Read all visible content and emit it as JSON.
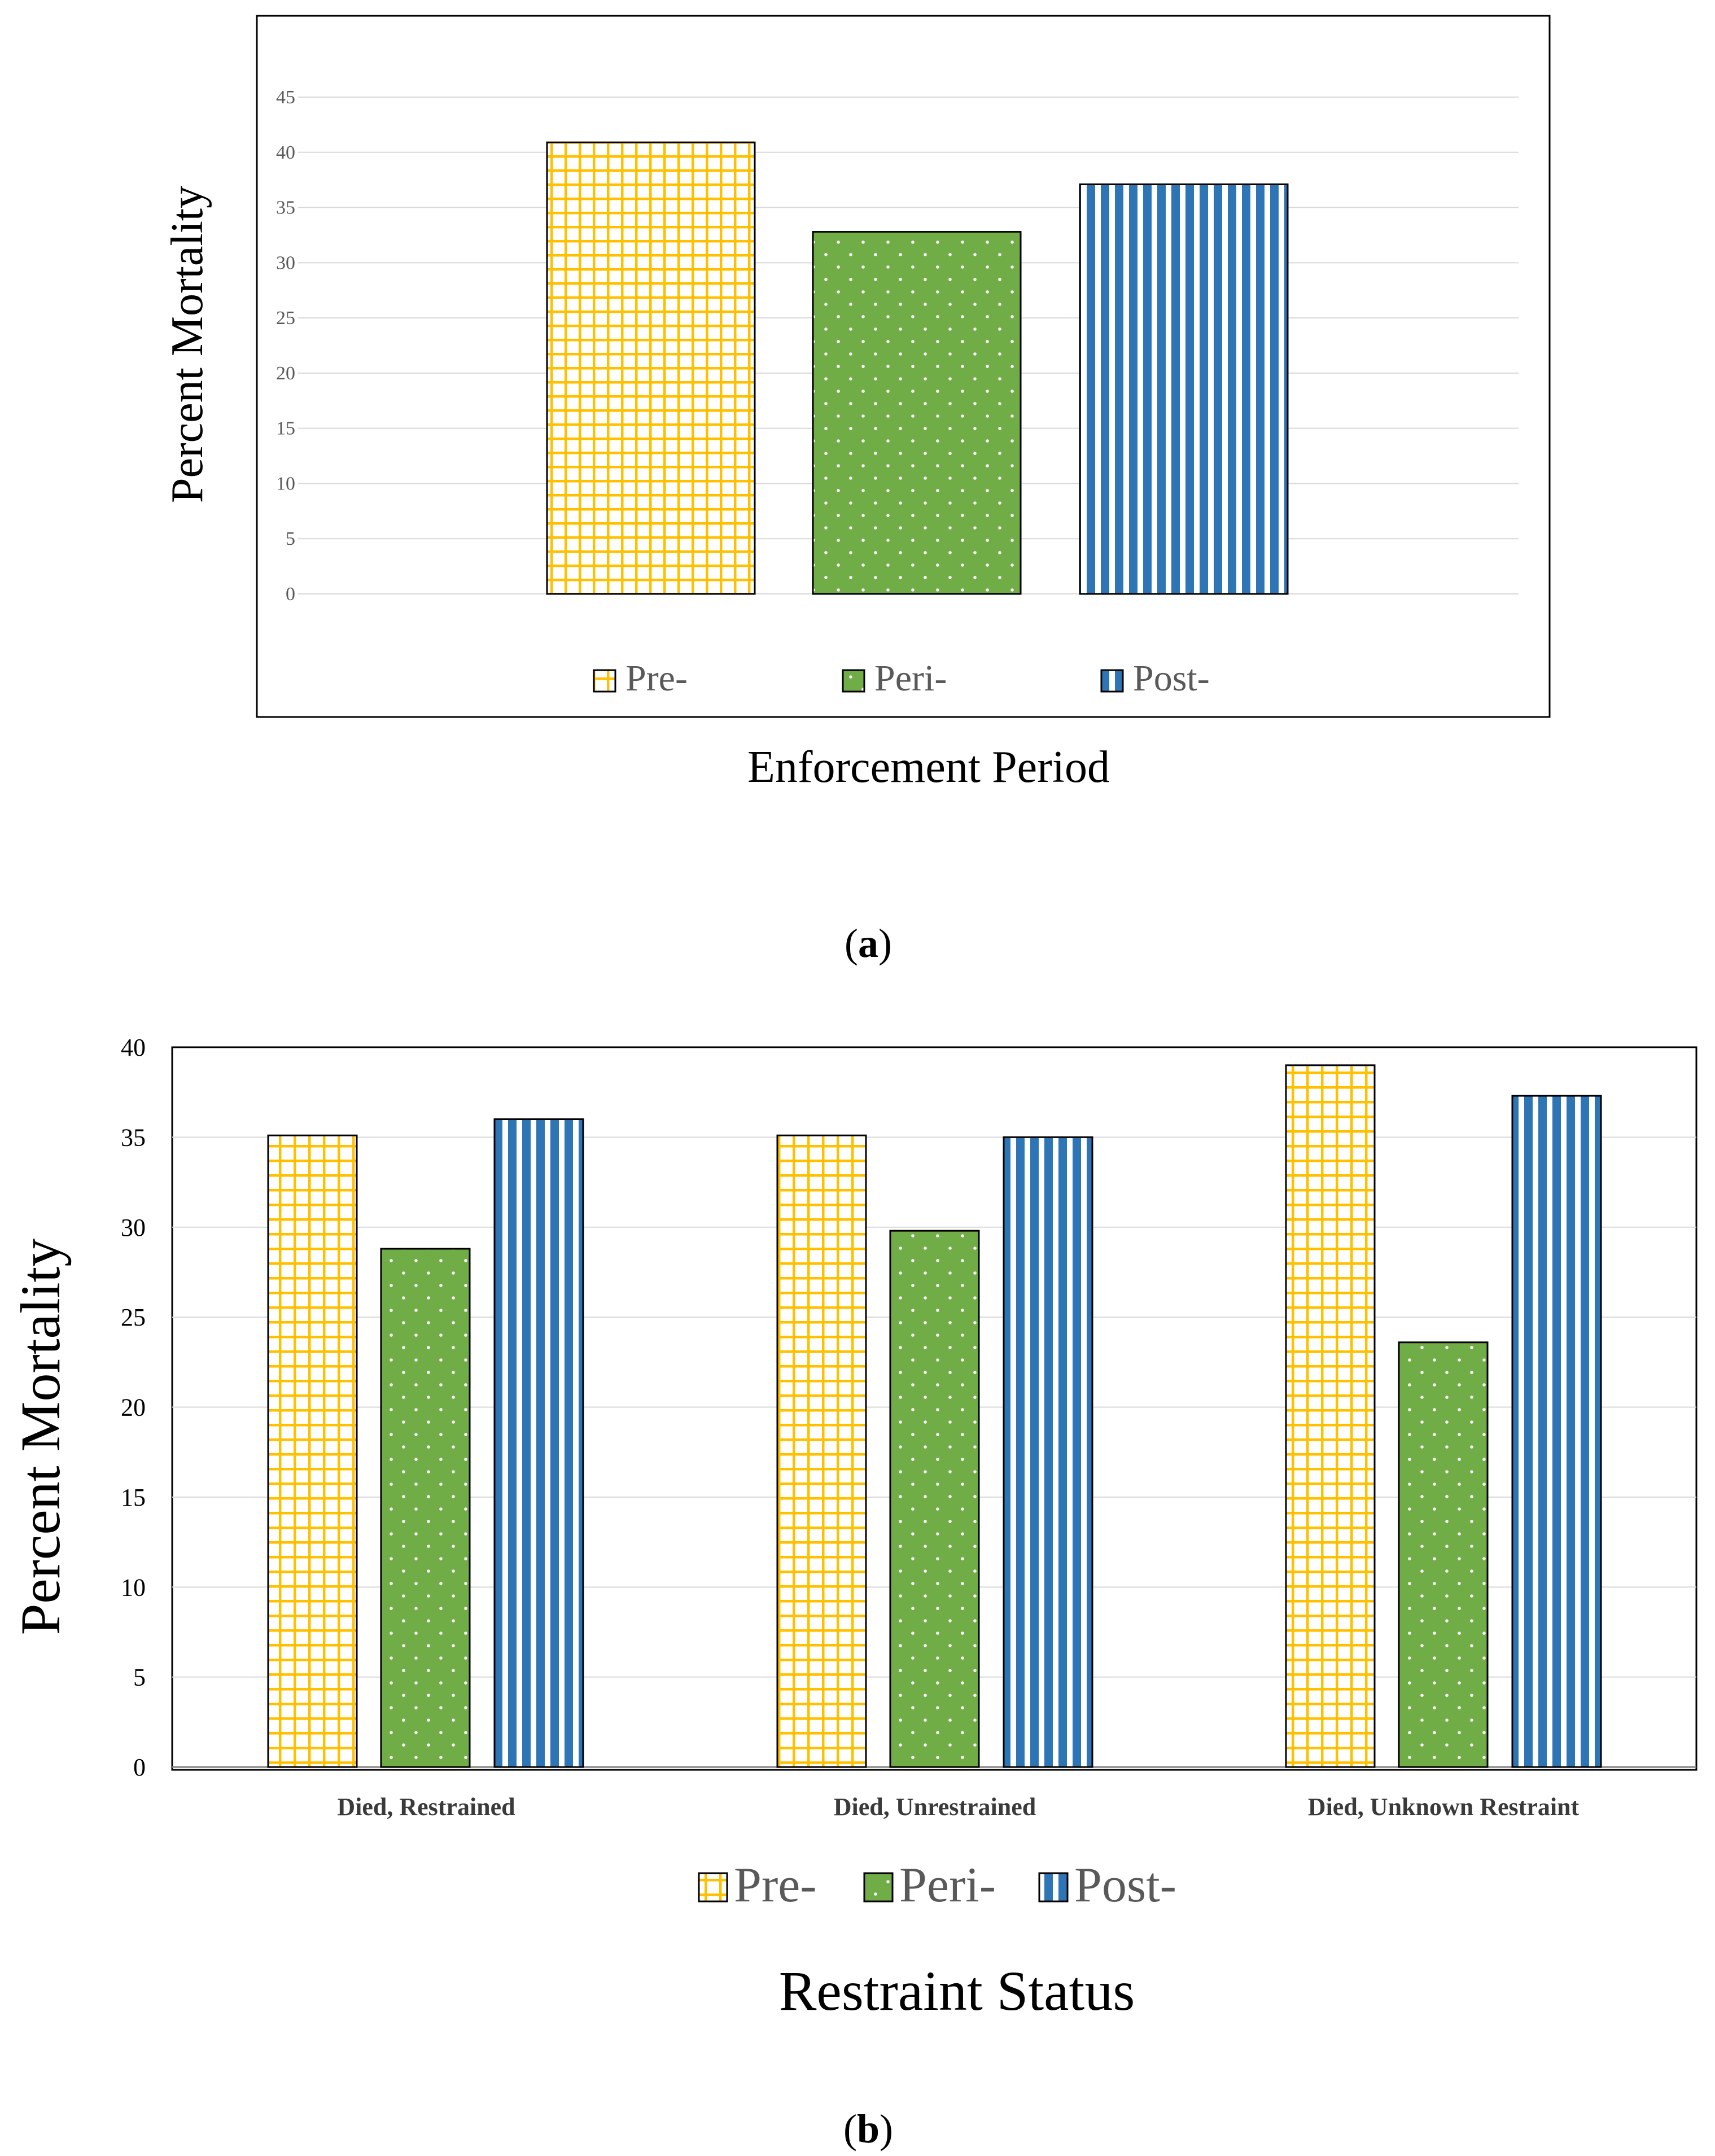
{
  "chart_data": [
    {
      "type": "bar",
      "panel_label": "(a)",
      "panel_letter": "a",
      "title": "",
      "xlabel": "Enforcement Period",
      "ylabel": "Percent Mortality",
      "ylim": [
        0,
        45
      ],
      "yticks": [
        0,
        5,
        10,
        15,
        20,
        25,
        30,
        35,
        40,
        45
      ],
      "grid": true,
      "legend_position": "bottom-inside",
      "categories": [
        ""
      ],
      "series": [
        {
          "name": "Pre-",
          "values": [
            40.9
          ],
          "color": "#FFC000",
          "pattern": "grid"
        },
        {
          "name": "Peri-",
          "values": [
            32.8
          ],
          "color": "#70AD47",
          "pattern": "dots"
        },
        {
          "name": "Post-",
          "values": [
            37.1
          ],
          "color": "#2E75B6",
          "pattern": "vertical-stripes"
        }
      ]
    },
    {
      "type": "bar",
      "panel_label": "(b)",
      "panel_letter": "b",
      "title": "",
      "xlabel": "Restraint Status",
      "ylabel": "Percent Mortality",
      "ylim": [
        0,
        40
      ],
      "yticks": [
        0,
        5,
        10,
        15,
        20,
        25,
        30,
        35,
        40
      ],
      "grid": true,
      "legend_position": "bottom",
      "categories": [
        "Died, Restrained",
        "Died, Unrestrained",
        "Died, Unknown Restraint"
      ],
      "series": [
        {
          "name": "Pre-",
          "values": [
            35.1,
            35.1,
            39.0
          ],
          "color": "#FFC000",
          "pattern": "grid"
        },
        {
          "name": "Peri-",
          "values": [
            28.8,
            29.8,
            23.6
          ],
          "color": "#70AD47",
          "pattern": "dots"
        },
        {
          "name": "Post-",
          "values": [
            36.0,
            35.0,
            37.3
          ],
          "color": "#2E75B6",
          "pattern": "vertical-stripes"
        }
      ]
    }
  ]
}
